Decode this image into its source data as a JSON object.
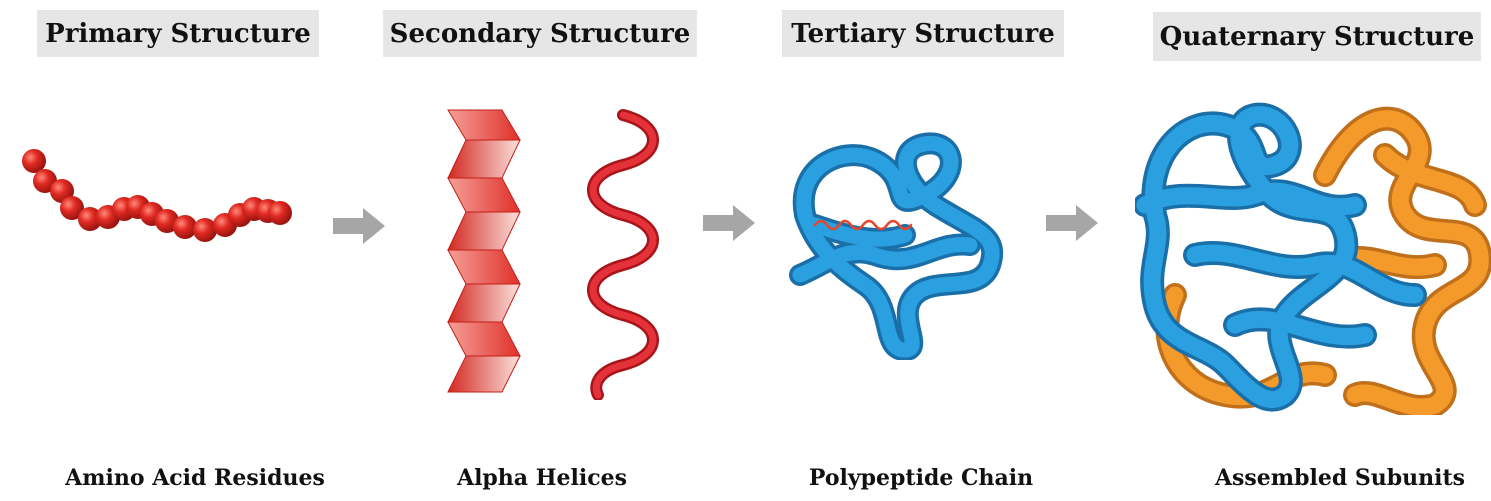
{
  "stages": [
    {
      "title": "Primary Structure",
      "caption": "Amino Acid Residues"
    },
    {
      "title": "Secondary Structure",
      "caption": "Alpha Helices"
    },
    {
      "title": "Tertiary Structure",
      "caption": "Polypeptide Chain"
    },
    {
      "title": "Quaternary Structure",
      "caption": "Assembled Subunits"
    }
  ],
  "colors": {
    "title_bg": "#e6e6e6",
    "residue_red": "#d8261f",
    "helix_red": "#e0302a",
    "chain_blue": "#2aa0e0",
    "subunit_orange": "#f39a2a",
    "arrow_gray": "#a6a6a6"
  },
  "icons": [
    "arrow-right-icon",
    "arrow-right-icon",
    "arrow-right-icon"
  ]
}
